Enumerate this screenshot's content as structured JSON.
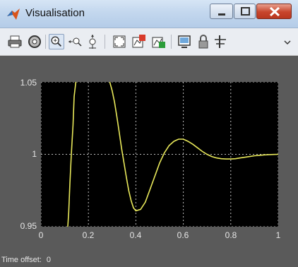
{
  "window": {
    "title": "Visualisation",
    "minimize": "minimize",
    "maximize": "maximize",
    "close": "close"
  },
  "toolbar": {
    "icons": [
      "print-icon",
      "parameters-icon",
      "zoom-icon",
      "zoom-x-icon",
      "zoom-y-icon",
      "autoscale-icon",
      "save-axes-icon",
      "restore-axes-icon",
      "float-icon",
      "lock-icon",
      "select-signals-icon"
    ],
    "overflow": "chevron-icon"
  },
  "status": {
    "label": "Time offset:",
    "value": "0"
  },
  "chart_data": {
    "type": "line",
    "title": "",
    "xlabel": "",
    "ylabel": "",
    "xlim": [
      0,
      1
    ],
    "ylim": [
      0.95,
      1.05
    ],
    "xticks": [
      "0",
      "0.2",
      "0.4",
      "0.6",
      "0.8",
      "1"
    ],
    "yticks": [
      "0.95",
      "1",
      "1.05"
    ],
    "grid": true,
    "series": [
      {
        "color": "#e8e85a",
        "x": [
          0.113,
          0.117,
          0.122,
          0.128,
          0.135,
          0.14,
          0.147,
          0.29,
          0.3,
          0.31,
          0.32,
          0.33,
          0.34,
          0.35,
          0.36,
          0.37,
          0.38,
          0.39,
          0.4,
          0.42,
          0.44,
          0.46,
          0.48,
          0.5,
          0.52,
          0.54,
          0.56,
          0.58,
          0.6,
          0.62,
          0.64,
          0.66,
          0.68,
          0.7,
          0.72,
          0.74,
          0.76,
          0.78,
          0.8,
          0.82,
          0.84,
          0.86,
          0.88,
          0.9,
          0.92,
          0.94,
          0.96,
          0.98,
          1.0
        ],
        "y": [
          0.95,
          0.96,
          0.98,
          1.0,
          1.02,
          1.04,
          1.05,
          1.05,
          1.044,
          1.036,
          1.026,
          1.015,
          1.004,
          0.994,
          0.984,
          0.975,
          0.968,
          0.963,
          0.961,
          0.962,
          0.967,
          0.976,
          0.985,
          0.994,
          1.001,
          1.006,
          1.009,
          1.0105,
          1.0105,
          1.009,
          1.007,
          1.0045,
          1.002,
          1.0,
          0.9985,
          0.9975,
          0.997,
          0.9968,
          0.9968,
          0.997,
          0.9975,
          0.998,
          0.9985,
          0.999,
          0.9993,
          0.9996,
          0.9998,
          0.9999,
          1.0
        ]
      }
    ]
  }
}
